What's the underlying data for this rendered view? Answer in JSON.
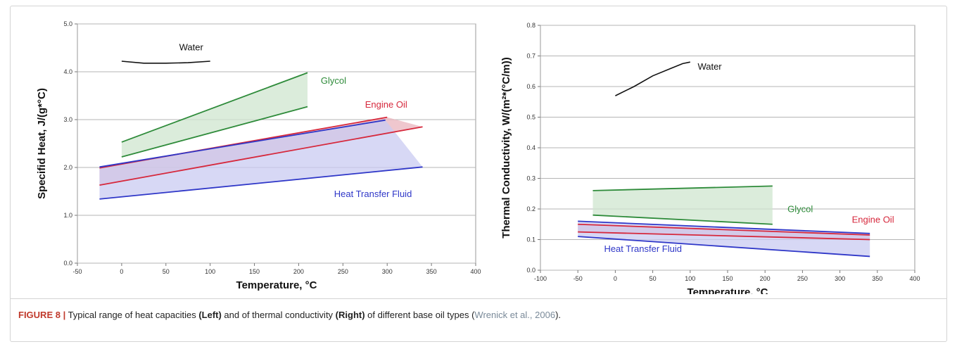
{
  "caption": {
    "figure_label": "FIGURE 8 |",
    "text_1": " Typical range of heat capacities ",
    "left_word": "(Left)",
    "text_2": " and of thermal conductivity ",
    "right_word": "(Right)",
    "text_3": " of different base oil types (",
    "citation": "Wrenick et al., 2006",
    "text_4": ")."
  },
  "chart_data": [
    {
      "type": "area",
      "xlabel": "Temperature, °C",
      "ylabel": "Specifid Heat, J/(g*°C)",
      "xlim": [
        -50,
        400
      ],
      "ylim": [
        0,
        5
      ],
      "xticks": [
        "-50",
        "0",
        "50",
        "100",
        "150",
        "200",
        "250",
        "300",
        "350",
        "400"
      ],
      "yticks": [
        "0.0",
        "1.0",
        "2.0",
        "3.0",
        "4.0",
        "5.0"
      ],
      "grid": "horizontal",
      "series": [
        {
          "name": "Water",
          "color": "#111111",
          "kind": "line",
          "points": [
            [
              0,
              4.22
            ],
            [
              25,
              4.18
            ],
            [
              50,
              4.18
            ],
            [
              75,
              4.19
            ],
            [
              100,
              4.22
            ]
          ],
          "label_at": [
            65,
            4.45
          ]
        },
        {
          "name": "Glycol",
          "color": "#2e8b3a",
          "fill": "#cfe6cf",
          "kind": "band",
          "upper": [
            [
              0,
              2.53
            ],
            [
              210,
              3.98
            ]
          ],
          "lower": [
            [
              0,
              2.22
            ],
            [
              210,
              3.27
            ]
          ],
          "label_at": [
            225,
            3.75
          ]
        },
        {
          "name": "Engine Oil",
          "color": "#d6283c",
          "fill": "#e9b4bd",
          "kind": "band",
          "upper": [
            [
              -25,
              1.99
            ],
            [
              300,
              3.05
            ]
          ],
          "lower": [
            [
              -25,
              1.63
            ],
            [
              340,
              2.85
            ]
          ],
          "label_at": [
            275,
            3.25
          ]
        },
        {
          "name": "Heat Transfer Fluid",
          "color": "#2f37c8",
          "fill": "#c9cbf2",
          "kind": "band",
          "upper": [
            [
              -25,
              2.01
            ],
            [
              298,
              2.99
            ]
          ],
          "lower": [
            [
              -25,
              1.34
            ],
            [
              340,
              2.01
            ]
          ],
          "label_at": [
            240,
            1.38
          ]
        }
      ]
    },
    {
      "type": "area",
      "xlabel": "Temperature, °C",
      "ylabel": "Thermal Conductivity, W/(m²*(°C/m))",
      "xlim": [
        -100,
        400
      ],
      "ylim": [
        0,
        0.8
      ],
      "xticks": [
        "-100",
        "-50",
        "0",
        "50",
        "100",
        "150",
        "200",
        "250",
        "300",
        "350",
        "400"
      ],
      "yticks": [
        "0.0",
        "0.1",
        "0.2",
        "0.3",
        "0.4",
        "0.5",
        "0.6",
        "0.7",
        "0.8"
      ],
      "grid": "horizontal",
      "series": [
        {
          "name": "Water",
          "color": "#111111",
          "kind": "line",
          "points": [
            [
              0,
              0.57
            ],
            [
              25,
              0.6
            ],
            [
              50,
              0.635
            ],
            [
              75,
              0.66
            ],
            [
              90,
              0.675
            ],
            [
              100,
              0.68
            ]
          ],
          "label_at": [
            110,
            0.655
          ]
        },
        {
          "name": "Glycol",
          "color": "#2e8b3a",
          "fill": "#cfe6cf",
          "kind": "band",
          "upper": [
            [
              -30,
              0.26
            ],
            [
              210,
              0.275
            ]
          ],
          "lower": [
            [
              -30,
              0.18
            ],
            [
              210,
              0.15
            ]
          ],
          "label_at": [
            230,
            0.19
          ]
        },
        {
          "name": "Engine Oil",
          "color": "#d6283c",
          "fill": "#e9b4bd",
          "kind": "band",
          "upper": [
            [
              -50,
              0.15
            ],
            [
              340,
              0.115
            ]
          ],
          "lower": [
            [
              -50,
              0.125
            ],
            [
              340,
              0.1
            ]
          ],
          "label_at": [
            316,
            0.155
          ]
        },
        {
          "name": "Heat Transfer Fluid",
          "color": "#2f37c8",
          "fill": "#c9cbf2",
          "kind": "band",
          "upper": [
            [
              -50,
              0.16
            ],
            [
              340,
              0.12
            ]
          ],
          "lower": [
            [
              -50,
              0.11
            ],
            [
              340,
              0.045
            ]
          ],
          "label_at": [
            -15,
            0.06
          ]
        }
      ]
    }
  ]
}
